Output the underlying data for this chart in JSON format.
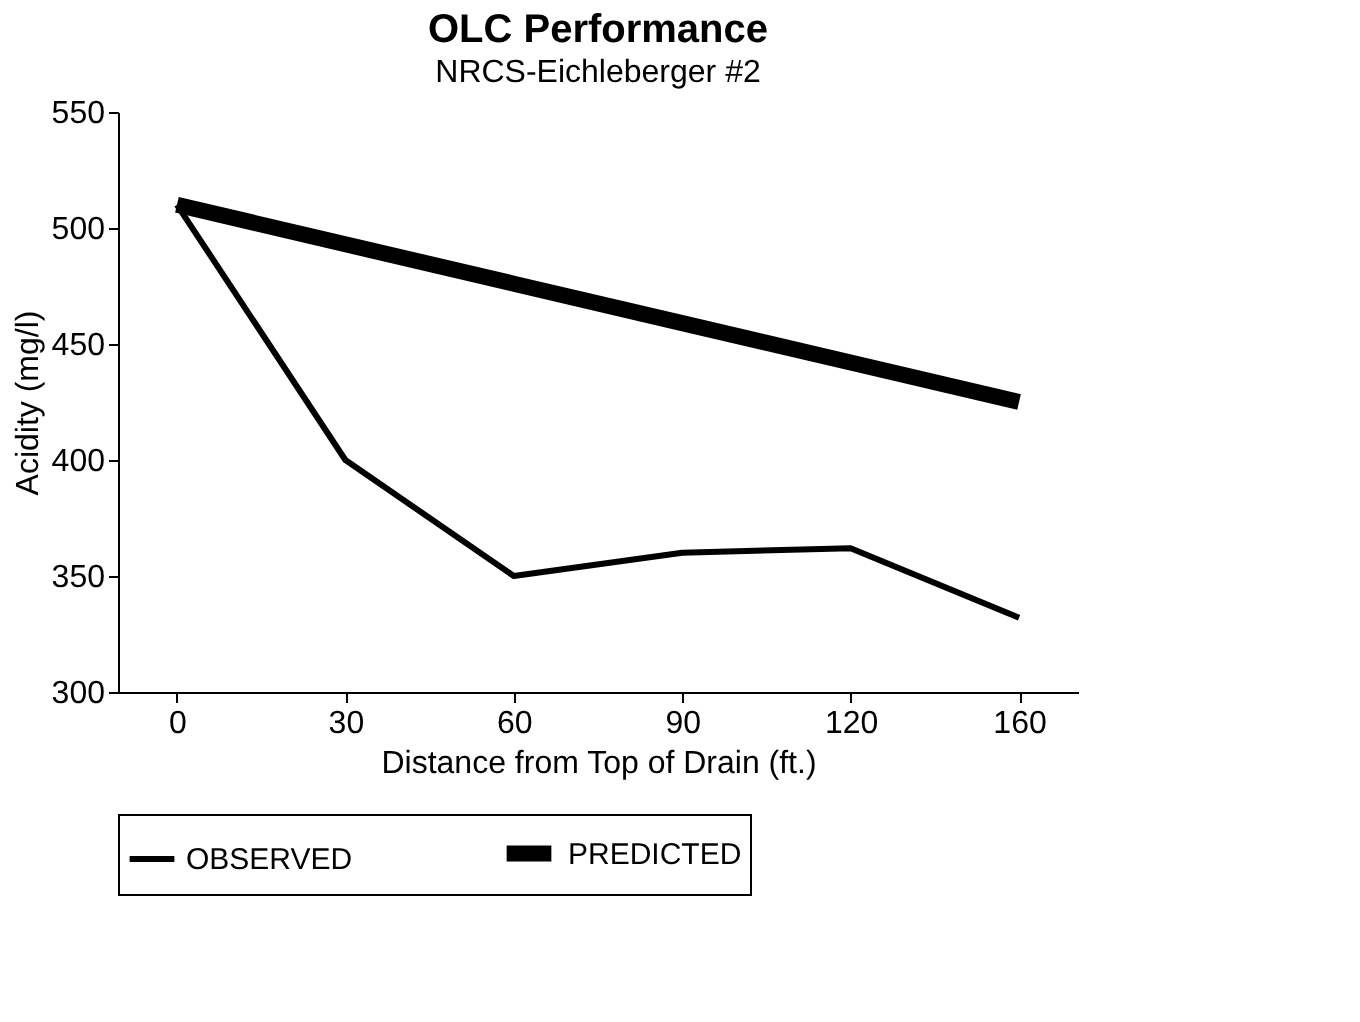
{
  "chart_data": {
    "type": "line",
    "title": "OLC Performance",
    "subtitle": "NRCS-Eichleberger #2",
    "xlabel": "Distance from Top of Drain (ft.)",
    "ylabel": "Acidity (mg/l)",
    "categories": [
      "0",
      "30",
      "60",
      "90",
      "120",
      "160"
    ],
    "series": [
      {
        "name": "OBSERVED",
        "color": "#000000",
        "values": [
          510,
          400,
          350,
          360,
          362,
          332
        ]
      },
      {
        "name": "PREDICTED",
        "color": "#000000",
        "values": [
          510,
          493,
          476,
          459,
          442,
          425
        ]
      }
    ],
    "ylim": [
      300,
      550
    ],
    "yticks": [
      300,
      350,
      400,
      450,
      500,
      550
    ],
    "grid": false,
    "legend": "bottom",
    "marker": "none",
    "line_style": "solid"
  }
}
